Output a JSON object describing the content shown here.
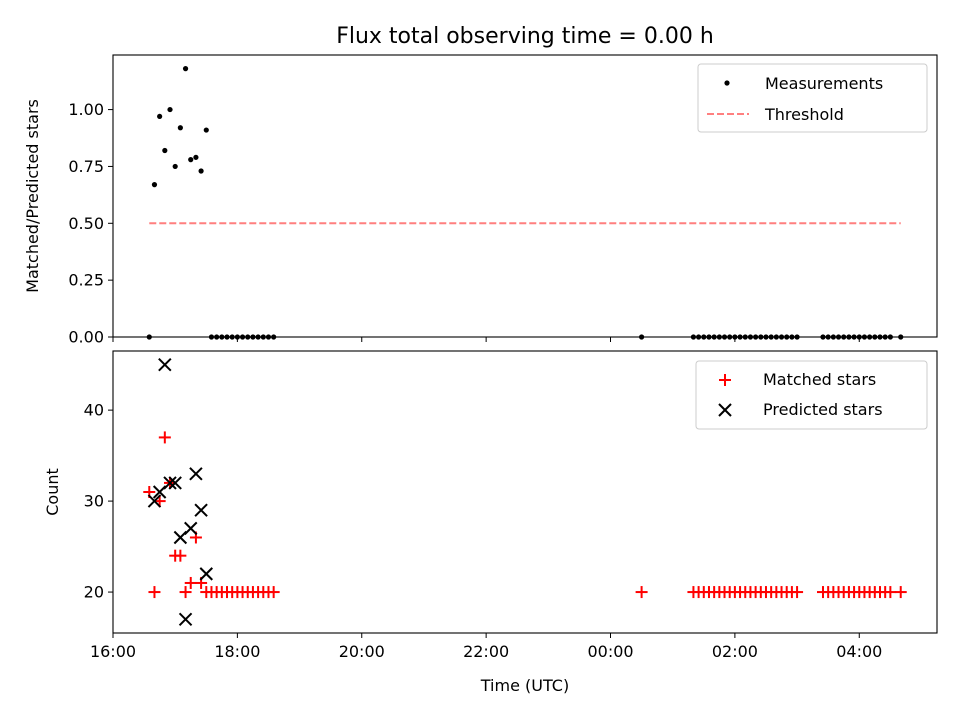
{
  "figure": {
    "title": "Flux total observing time = 0.00 h",
    "xlabel": "Time (UTC)"
  },
  "chart_data": [
    {
      "type": "scatter",
      "ylabel": "Matched/Predicted stars",
      "xlim": [
        "16:00",
        "05:15"
      ],
      "ylim": [
        0,
        1.24
      ],
      "yticks": [
        "0.00",
        "0.25",
        "0.50",
        "0.75",
        "1.00"
      ],
      "xticks": [
        "16:00",
        "18:00",
        "20:00",
        "22:00",
        "00:00",
        "02:00",
        "04:00"
      ],
      "xtick_labels_shown": false,
      "legend_position": "top-right",
      "series": [
        {
          "name": "Measurements",
          "style": "point",
          "color": "#000000",
          "x": [
            "16:35",
            "16:40",
            "16:45",
            "16:50",
            "16:55",
            "17:00",
            "17:05",
            "17:10",
            "17:15",
            "17:20",
            "17:25",
            "17:30",
            "17:35",
            "17:40",
            "17:45",
            "17:50",
            "17:55",
            "18:00",
            "18:05",
            "18:10",
            "18:15",
            "18:20",
            "18:25",
            "18:30",
            "18:35",
            "00:30",
            "01:20",
            "01:25",
            "01:30",
            "01:35",
            "01:40",
            "01:45",
            "01:50",
            "01:55",
            "02:00",
            "02:05",
            "02:10",
            "02:15",
            "02:20",
            "02:25",
            "02:30",
            "02:35",
            "02:40",
            "02:45",
            "02:50",
            "02:55",
            "03:00",
            "03:25",
            "03:30",
            "03:35",
            "03:40",
            "03:45",
            "03:50",
            "03:55",
            "04:00",
            "04:05",
            "04:10",
            "04:15",
            "04:20",
            "04:25",
            "04:30",
            "04:40"
          ],
          "y": [
            0.0,
            0.67,
            0.97,
            0.82,
            1.0,
            0.75,
            0.92,
            1.18,
            0.78,
            0.79,
            0.73,
            0.91,
            0.0,
            0.0,
            0.0,
            0.0,
            0.0,
            0.0,
            0.0,
            0.0,
            0.0,
            0.0,
            0.0,
            0.0,
            0.0,
            0.0,
            0.0,
            0.0,
            0.0,
            0.0,
            0.0,
            0.0,
            0.0,
            0.0,
            0.0,
            0.0,
            0.0,
            0.0,
            0.0,
            0.0,
            0.0,
            0.0,
            0.0,
            0.0,
            0.0,
            0.0,
            0.0,
            0.0,
            0.0,
            0.0,
            0.0,
            0.0,
            0.0,
            0.0,
            0.0,
            0.0,
            0.0,
            0.0,
            0.0,
            0.0,
            0.0,
            0.0
          ]
        },
        {
          "name": "Threshold",
          "style": "dashed-line",
          "color": "#ff7f7f",
          "x": [
            "16:35",
            "04:40"
          ],
          "y": [
            0.5,
            0.5
          ]
        }
      ]
    },
    {
      "type": "scatter",
      "ylabel": "Count",
      "xlim": [
        "16:00",
        "05:15"
      ],
      "ylim": [
        15.5,
        46.5
      ],
      "yticks": [
        "20",
        "30",
        "40"
      ],
      "xticks": [
        "16:00",
        "18:00",
        "20:00",
        "22:00",
        "00:00",
        "02:00",
        "04:00"
      ],
      "legend_position": "top-right",
      "series": [
        {
          "name": "Matched stars",
          "marker": "+",
          "color": "#ff0000",
          "x": [
            "16:35",
            "16:40",
            "16:45",
            "16:50",
            "16:55",
            "17:00",
            "17:05",
            "17:10",
            "17:15",
            "17:20",
            "17:25",
            "17:30",
            "17:35",
            "17:40",
            "17:45",
            "17:50",
            "17:55",
            "18:00",
            "18:05",
            "18:10",
            "18:15",
            "18:20",
            "18:25",
            "18:30",
            "18:35",
            "00:30",
            "01:20",
            "01:25",
            "01:30",
            "01:35",
            "01:40",
            "01:45",
            "01:50",
            "01:55",
            "02:00",
            "02:05",
            "02:10",
            "02:15",
            "02:20",
            "02:25",
            "02:30",
            "02:35",
            "02:40",
            "02:45",
            "02:50",
            "02:55",
            "03:00",
            "03:25",
            "03:30",
            "03:35",
            "03:40",
            "03:45",
            "03:50",
            "03:55",
            "04:00",
            "04:05",
            "04:10",
            "04:15",
            "04:20",
            "04:25",
            "04:30",
            "04:40"
          ],
          "y": [
            31,
            20,
            30,
            37,
            32,
            24,
            24,
            20,
            21,
            26,
            21,
            20,
            20,
            20,
            20,
            20,
            20,
            20,
            20,
            20,
            20,
            20,
            20,
            20,
            20,
            20,
            20,
            20,
            20,
            20,
            20,
            20,
            20,
            20,
            20,
            20,
            20,
            20,
            20,
            20,
            20,
            20,
            20,
            20,
            20,
            20,
            20,
            20,
            20,
            20,
            20,
            20,
            20,
            20,
            20,
            20,
            20,
            20,
            20,
            20,
            20,
            20
          ]
        },
        {
          "name": "Predicted stars",
          "marker": "x",
          "color": "#000000",
          "x": [
            "16:40",
            "16:45",
            "16:50",
            "16:55",
            "17:00",
            "17:05",
            "17:10",
            "17:15",
            "17:20",
            "17:25",
            "17:30"
          ],
          "y": [
            30,
            31,
            45,
            32,
            32,
            26,
            17,
            27,
            33,
            29,
            22
          ]
        }
      ]
    }
  ]
}
